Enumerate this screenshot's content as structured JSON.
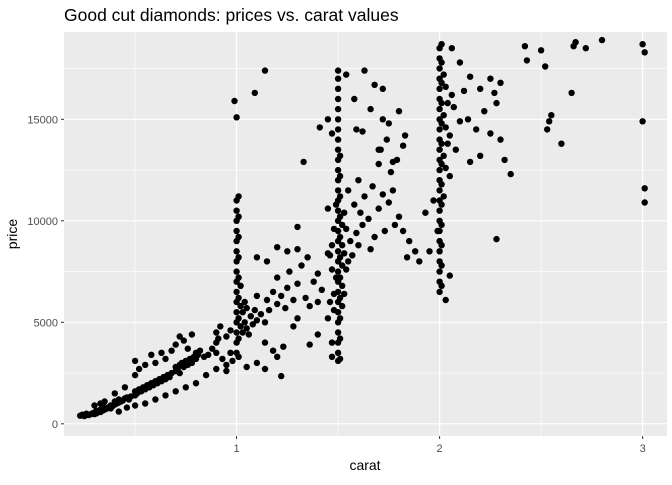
{
  "chart_data": {
    "type": "scatter",
    "title": "Good cut diamonds: prices vs. carat values",
    "xlabel": "carat",
    "ylabel": "price",
    "xlim": [
      0.15,
      3.12
    ],
    "ylim": [
      -600,
      19300
    ],
    "x_ticks": [
      1,
      2,
      3
    ],
    "x_tick_labels": [
      "1",
      "2",
      "3"
    ],
    "x_minor_ticks": [
      0.5,
      1.5,
      2.5
    ],
    "y_ticks": [
      0,
      5000,
      10000,
      15000
    ],
    "y_tick_labels": [
      "0",
      "5000",
      "10000",
      "15000"
    ],
    "y_minor_ticks": [
      2500,
      7500,
      12500,
      17500
    ],
    "grid": true,
    "legend": "none",
    "colors": {
      "panel": "#ebebeb",
      "grid": "#ffffff",
      "point": "#000000",
      "text": "#1a1a1a",
      "tick_label": "#4d4d4d"
    },
    "points": [
      [
        0.23,
        400
      ],
      [
        0.24,
        450
      ],
      [
        0.25,
        380
      ],
      [
        0.26,
        500
      ],
      [
        0.27,
        430
      ],
      [
        0.28,
        470
      ],
      [
        0.29,
        520
      ],
      [
        0.3,
        480
      ],
      [
        0.3,
        560
      ],
      [
        0.31,
        520
      ],
      [
        0.31,
        640
      ],
      [
        0.32,
        600
      ],
      [
        0.33,
        580
      ],
      [
        0.33,
        700
      ],
      [
        0.34,
        650
      ],
      [
        0.35,
        700
      ],
      [
        0.35,
        800
      ],
      [
        0.36,
        750
      ],
      [
        0.37,
        820
      ],
      [
        0.38,
        900
      ],
      [
        0.38,
        760
      ],
      [
        0.39,
        880
      ],
      [
        0.4,
        950
      ],
      [
        0.4,
        1100
      ],
      [
        0.41,
        1000
      ],
      [
        0.42,
        1050
      ],
      [
        0.42,
        1200
      ],
      [
        0.43,
        1100
      ],
      [
        0.44,
        1150
      ],
      [
        0.45,
        1250
      ],
      [
        0.46,
        1300
      ],
      [
        0.47,
        1200
      ],
      [
        0.48,
        1350
      ],
      [
        0.5,
        1400
      ],
      [
        0.5,
        1600
      ],
      [
        0.51,
        1500
      ],
      [
        0.52,
        1700
      ],
      [
        0.53,
        1600
      ],
      [
        0.54,
        1800
      ],
      [
        0.55,
        1700
      ],
      [
        0.56,
        1900
      ],
      [
        0.57,
        1800
      ],
      [
        0.58,
        2000
      ],
      [
        0.59,
        1900
      ],
      [
        0.6,
        2100
      ],
      [
        0.61,
        2000
      ],
      [
        0.62,
        2200
      ],
      [
        0.63,
        2100
      ],
      [
        0.64,
        2300
      ],
      [
        0.65,
        2200
      ],
      [
        0.66,
        2400
      ],
      [
        0.67,
        2300
      ],
      [
        0.68,
        2500
      ],
      [
        0.7,
        2600
      ],
      [
        0.7,
        2800
      ],
      [
        0.71,
        2700
      ],
      [
        0.72,
        2900
      ],
      [
        0.72,
        2500
      ],
      [
        0.73,
        3000
      ],
      [
        0.74,
        2800
      ],
      [
        0.75,
        3100
      ],
      [
        0.76,
        2900
      ],
      [
        0.77,
        3200
      ],
      [
        0.78,
        3000
      ],
      [
        0.79,
        3300
      ],
      [
        0.8,
        3200
      ],
      [
        0.8,
        3500
      ],
      [
        0.81,
        3400
      ],
      [
        0.82,
        3600
      ],
      [
        0.84,
        3300
      ],
      [
        0.86,
        3400
      ],
      [
        0.88,
        3700
      ],
      [
        0.9,
        3500
      ],
      [
        0.9,
        4000
      ],
      [
        0.9,
        4500
      ],
      [
        0.91,
        4200
      ],
      [
        0.92,
        4800
      ],
      [
        0.95,
        4300
      ],
      [
        0.97,
        4600
      ],
      [
        0.5,
        2400
      ],
      [
        0.5,
        3100
      ],
      [
        0.52,
        2700
      ],
      [
        0.55,
        2900
      ],
      [
        0.58,
        3400
      ],
      [
        0.6,
        3000
      ],
      [
        0.63,
        3500
      ],
      [
        0.65,
        3200
      ],
      [
        0.68,
        3600
      ],
      [
        0.7,
        3900
      ],
      [
        0.72,
        4300
      ],
      [
        0.74,
        4100
      ],
      [
        0.76,
        3700
      ],
      [
        0.78,
        4400
      ],
      [
        0.35,
        1100
      ],
      [
        0.4,
        1500
      ],
      [
        0.45,
        1800
      ],
      [
        0.3,
        900
      ],
      [
        0.33,
        1000
      ],
      [
        0.42,
        600
      ],
      [
        0.46,
        800
      ],
      [
        0.5,
        900
      ],
      [
        0.55,
        1000
      ],
      [
        0.6,
        1200
      ],
      [
        0.65,
        1400
      ],
      [
        0.7,
        1600
      ],
      [
        0.75,
        1800
      ],
      [
        0.8,
        2000
      ],
      [
        0.85,
        2400
      ],
      [
        0.9,
        2700
      ],
      [
        0.95,
        2900
      ],
      [
        0.98,
        3100
      ],
      [
        1.0,
        3500
      ],
      [
        1.0,
        4000
      ],
      [
        1.0,
        4500
      ],
      [
        1.0,
        5000
      ],
      [
        1.0,
        5500
      ],
      [
        1.0,
        6000
      ],
      [
        1.0,
        6500
      ],
      [
        1.0,
        7000
      ],
      [
        1.0,
        7500
      ],
      [
        1.0,
        8000
      ],
      [
        1.0,
        8500
      ],
      [
        1.0,
        9000
      ],
      [
        1.0,
        9500
      ],
      [
        1.0,
        10000
      ],
      [
        1.0,
        10500
      ],
      [
        1.0,
        11000
      ],
      [
        1.01,
        3300
      ],
      [
        1.01,
        4200
      ],
      [
        1.01,
        5200
      ],
      [
        1.01,
        6200
      ],
      [
        1.01,
        7200
      ],
      [
        1.01,
        8200
      ],
      [
        1.01,
        9200
      ],
      [
        1.01,
        10200
      ],
      [
        1.01,
        11200
      ],
      [
        1.02,
        4800
      ],
      [
        1.02,
        5800
      ],
      [
        1.02,
        6800
      ],
      [
        1.03,
        4500
      ],
      [
        1.03,
        5500
      ],
      [
        1.04,
        5000
      ],
      [
        1.04,
        6000
      ],
      [
        1.05,
        4700
      ],
      [
        1.05,
        5700
      ],
      [
        1.06,
        4400
      ],
      [
        1.07,
        5300
      ],
      [
        1.08,
        4900
      ],
      [
        1.09,
        5600
      ],
      [
        1.1,
        5100
      ],
      [
        1.1,
        6300
      ],
      [
        1.12,
        5400
      ],
      [
        1.14,
        5000
      ],
      [
        1.15,
        6100
      ],
      [
        1.16,
        5600
      ],
      [
        1.18,
        6500
      ],
      [
        1.2,
        5900
      ],
      [
        1.2,
        7200
      ],
      [
        1.22,
        6300
      ],
      [
        1.24,
        5700
      ],
      [
        1.25,
        6700
      ],
      [
        1.26,
        7500
      ],
      [
        1.28,
        6100
      ],
      [
        1.3,
        6900
      ],
      [
        1.3,
        5200
      ],
      [
        1.32,
        7800
      ],
      [
        1.34,
        6200
      ],
      [
        1.35,
        8200
      ],
      [
        1.36,
        5800
      ],
      [
        1.38,
        7000
      ],
      [
        1.4,
        7400
      ],
      [
        1.4,
        6000
      ],
      [
        1.42,
        6600
      ],
      [
        1.45,
        8400
      ],
      [
        0.99,
        15900
      ],
      [
        1.0,
        15100
      ],
      [
        1.09,
        16300
      ],
      [
        1.14,
        17400
      ],
      [
        1.2,
        8700
      ],
      [
        1.1,
        8200
      ],
      [
        1.15,
        8000
      ],
      [
        1.25,
        8500
      ],
      [
        1.3,
        8600
      ],
      [
        1.33,
        12900
      ],
      [
        1.3,
        9700
      ],
      [
        1.41,
        14600
      ],
      [
        1.47,
        14300
      ],
      [
        1.45,
        15000
      ],
      [
        0.93,
        3200
      ],
      [
        0.95,
        2600
      ],
      [
        0.97,
        3500
      ],
      [
        1.05,
        2800
      ],
      [
        1.1,
        3000
      ],
      [
        1.14,
        2700
      ],
      [
        1.2,
        3300
      ],
      [
        1.14,
        4000
      ],
      [
        1.18,
        3600
      ],
      [
        1.23,
        3800
      ],
      [
        1.22,
        2350
      ],
      [
        1.28,
        4800
      ],
      [
        1.36,
        3900
      ],
      [
        1.4,
        4400
      ],
      [
        1.5,
        3100
      ],
      [
        1.5,
        3500
      ],
      [
        1.5,
        4000
      ],
      [
        1.5,
        4500
      ],
      [
        1.5,
        5000
      ],
      [
        1.5,
        5500
      ],
      [
        1.5,
        6000
      ],
      [
        1.5,
        6500
      ],
      [
        1.5,
        7000
      ],
      [
        1.5,
        7500
      ],
      [
        1.5,
        8000
      ],
      [
        1.5,
        8500
      ],
      [
        1.5,
        9000
      ],
      [
        1.5,
        9500
      ],
      [
        1.5,
        10000
      ],
      [
        1.5,
        10500
      ],
      [
        1.5,
        11000
      ],
      [
        1.5,
        11500
      ],
      [
        1.5,
        12000
      ],
      [
        1.5,
        12500
      ],
      [
        1.5,
        13000
      ],
      [
        1.5,
        13500
      ],
      [
        1.5,
        14000
      ],
      [
        1.5,
        14500
      ],
      [
        1.5,
        15000
      ],
      [
        1.5,
        15500
      ],
      [
        1.5,
        16000
      ],
      [
        1.5,
        16500
      ],
      [
        1.5,
        17000
      ],
      [
        1.5,
        17400
      ],
      [
        1.51,
        3200
      ],
      [
        1.51,
        4200
      ],
      [
        1.51,
        5200
      ],
      [
        1.51,
        6200
      ],
      [
        1.51,
        7200
      ],
      [
        1.51,
        8200
      ],
      [
        1.51,
        9200
      ],
      [
        1.51,
        10200
      ],
      [
        1.51,
        11200
      ],
      [
        1.51,
        12200
      ],
      [
        1.51,
        13200
      ],
      [
        1.52,
        5800
      ],
      [
        1.52,
        6800
      ],
      [
        1.52,
        7800
      ],
      [
        1.52,
        8800
      ],
      [
        1.52,
        9800
      ],
      [
        1.53,
        6400
      ],
      [
        1.53,
        8400
      ],
      [
        1.53,
        10400
      ],
      [
        1.54,
        7600
      ],
      [
        1.54,
        9600
      ],
      [
        1.55,
        8000
      ],
      [
        1.55,
        11500
      ],
      [
        1.56,
        9000
      ],
      [
        1.57,
        8300
      ],
      [
        1.58,
        10800
      ],
      [
        1.59,
        9400
      ],
      [
        1.6,
        12000
      ],
      [
        1.6,
        8800
      ],
      [
        1.61,
        10400
      ],
      [
        1.62,
        9800
      ],
      [
        1.63,
        11200
      ],
      [
        1.65,
        10100
      ],
      [
        1.66,
        8600
      ],
      [
        1.67,
        11700
      ],
      [
        1.68,
        9200
      ],
      [
        1.7,
        12800
      ],
      [
        1.7,
        10600
      ],
      [
        1.71,
        13500
      ],
      [
        1.72,
        11300
      ],
      [
        1.73,
        9500
      ],
      [
        1.74,
        14000
      ],
      [
        1.75,
        10900
      ],
      [
        1.76,
        12400
      ],
      [
        1.77,
        11500
      ],
      [
        1.78,
        9800
      ],
      [
        1.79,
        13000
      ],
      [
        1.8,
        10200
      ],
      [
        1.82,
        9500
      ],
      [
        1.84,
        8200
      ],
      [
        1.85,
        9000
      ],
      [
        1.88,
        8500
      ],
      [
        1.9,
        8000
      ],
      [
        1.48,
        6400
      ],
      [
        1.48,
        5600
      ],
      [
        1.49,
        7200
      ],
      [
        1.47,
        8800
      ],
      [
        1.48,
        9600
      ],
      [
        1.49,
        10800
      ],
      [
        1.46,
        6000
      ],
      [
        1.47,
        7600
      ],
      [
        1.46,
        8300
      ],
      [
        1.47,
        4000
      ],
      [
        1.47,
        3300
      ],
      [
        1.45,
        10600
      ],
      [
        1.45,
        5200
      ],
      [
        1.54,
        17200
      ],
      [
        1.58,
        16000
      ],
      [
        1.63,
        17400
      ],
      [
        1.68,
        16700
      ],
      [
        1.72,
        16500
      ],
      [
        1.72,
        15000
      ],
      [
        1.8,
        15400
      ],
      [
        1.82,
        13700
      ],
      [
        1.75,
        14800
      ],
      [
        1.66,
        15500
      ],
      [
        1.62,
        14400
      ],
      [
        1.59,
        14500
      ],
      [
        1.7,
        13500
      ],
      [
        1.77,
        12900
      ],
      [
        1.83,
        14200
      ],
      [
        2.0,
        6500
      ],
      [
        2.0,
        7000
      ],
      [
        2.0,
        7500
      ],
      [
        2.0,
        8000
      ],
      [
        2.0,
        8500
      ],
      [
        2.0,
        9000
      ],
      [
        2.0,
        9500
      ],
      [
        2.0,
        10000
      ],
      [
        2.0,
        10500
      ],
      [
        2.0,
        11000
      ],
      [
        2.0,
        11500
      ],
      [
        2.0,
        12000
      ],
      [
        2.0,
        12500
      ],
      [
        2.0,
        13000
      ],
      [
        2.0,
        13500
      ],
      [
        2.0,
        14000
      ],
      [
        2.0,
        14500
      ],
      [
        2.0,
        15000
      ],
      [
        2.0,
        15500
      ],
      [
        2.0,
        16000
      ],
      [
        2.0,
        16500
      ],
      [
        2.0,
        17000
      ],
      [
        2.0,
        17500
      ],
      [
        2.0,
        18000
      ],
      [
        2.0,
        18500
      ],
      [
        2.01,
        6800
      ],
      [
        2.01,
        7800
      ],
      [
        2.01,
        8800
      ],
      [
        2.01,
        9800
      ],
      [
        2.01,
        10800
      ],
      [
        2.01,
        11800
      ],
      [
        2.01,
        12800
      ],
      [
        2.01,
        13800
      ],
      [
        2.01,
        14800
      ],
      [
        2.01,
        15800
      ],
      [
        2.01,
        16800
      ],
      [
        2.01,
        17800
      ],
      [
        2.01,
        18700
      ],
      [
        2.02,
        11200
      ],
      [
        2.02,
        13200
      ],
      [
        2.02,
        15200
      ],
      [
        2.02,
        17200
      ],
      [
        2.03,
        12600
      ],
      [
        2.03,
        14600
      ],
      [
        2.03,
        16600
      ],
      [
        2.04,
        13800
      ],
      [
        2.04,
        15800
      ],
      [
        2.05,
        12200
      ],
      [
        2.05,
        14200
      ],
      [
        2.06,
        16200
      ],
      [
        2.07,
        15600
      ],
      [
        2.08,
        13500
      ],
      [
        2.1,
        14900
      ],
      [
        2.12,
        16400
      ],
      [
        2.14,
        15000
      ],
      [
        2.15,
        12900
      ],
      [
        2.18,
        14500
      ],
      [
        2.2,
        13200
      ],
      [
        2.22,
        15400
      ],
      [
        2.25,
        14300
      ],
      [
        2.28,
        15800
      ],
      [
        2.3,
        14000
      ],
      [
        2.32,
        13000
      ],
      [
        2.35,
        12300
      ],
      [
        2.28,
        9100
      ],
      [
        2.06,
        18500
      ],
      [
        2.1,
        17800
      ],
      [
        2.15,
        17100
      ],
      [
        2.2,
        16500
      ],
      [
        2.25,
        17000
      ],
      [
        2.3,
        16800
      ],
      [
        2.27,
        16300
      ],
      [
        1.93,
        10400
      ],
      [
        1.97,
        11000
      ],
      [
        1.95,
        8500
      ],
      [
        1.99,
        9500
      ],
      [
        2.03,
        6100
      ],
      [
        2.05,
        7300
      ],
      [
        2.42,
        18600
      ],
      [
        2.43,
        17900
      ],
      [
        2.5,
        18400
      ],
      [
        2.52,
        17600
      ],
      [
        2.53,
        14500
      ],
      [
        2.55,
        15200
      ],
      [
        2.54,
        14900
      ],
      [
        2.6,
        13800
      ],
      [
        2.65,
        16300
      ],
      [
        2.66,
        18600
      ],
      [
        2.67,
        18800
      ],
      [
        2.72,
        18500
      ],
      [
        2.8,
        18900
      ],
      [
        3.0,
        18700
      ],
      [
        3.01,
        18300
      ],
      [
        3.0,
        14900
      ],
      [
        3.01,
        11600
      ],
      [
        3.01,
        10900
      ]
    ]
  }
}
